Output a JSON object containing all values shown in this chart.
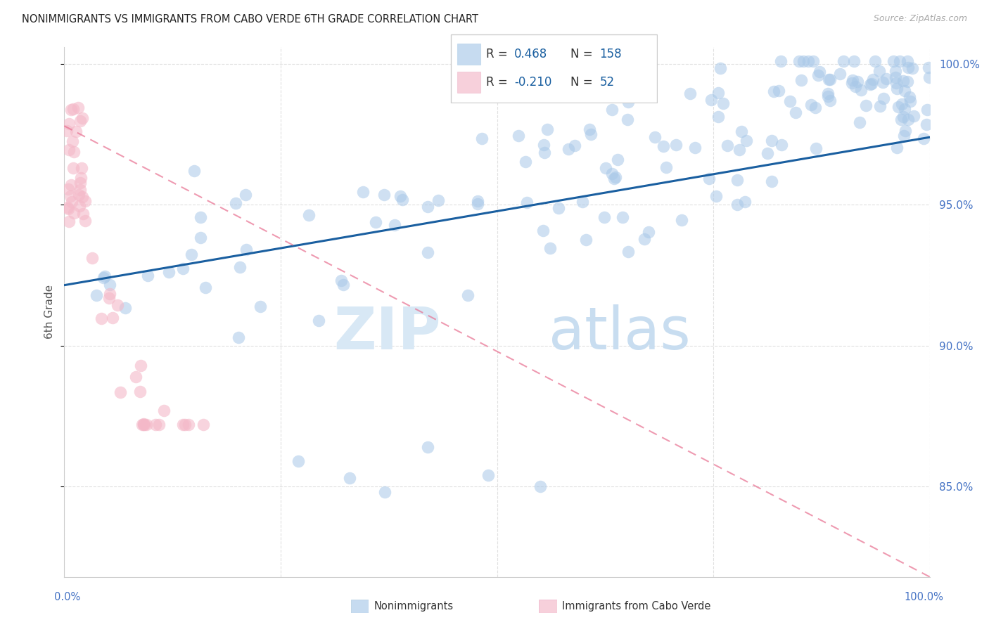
{
  "title": "NONIMMIGRANTS VS IMMIGRANTS FROM CABO VERDE 6TH GRADE CORRELATION CHART",
  "source_text": "Source: ZipAtlas.com",
  "ylabel": "6th Grade",
  "xlim": [
    0,
    1
  ],
  "ylim": [
    0.818,
    1.006
  ],
  "yticks": [
    0.85,
    0.9,
    0.95,
    1.0
  ],
  "blue_R_str": "0.468",
  "blue_N_str": "158",
  "pink_R_str": "-0.210",
  "pink_N_str": "52",
  "blue_scatter_color": "#a8c8e8",
  "pink_scatter_color": "#f4b8c8",
  "blue_line_color": "#1a5fa0",
  "pink_line_color": "#e87090",
  "right_tick_color": "#4472C4",
  "watermark_zip_color": "#d8e8f5",
  "watermark_atlas_color": "#c8ddf0",
  "grid_color": "#e0e0e0",
  "title_color": "#222222",
  "axis_label_color": "#555555",
  "legend_border_color": "#cccccc",
  "legend_text_color": "#333333",
  "legend_value_color": "#1a5fa0",
  "bottom_label_color": "#333333",
  "blue_line_start_y": 0.9215,
  "blue_line_end_y": 0.974,
  "pink_line_start_y": 0.978,
  "pink_line_end_y": 0.818
}
